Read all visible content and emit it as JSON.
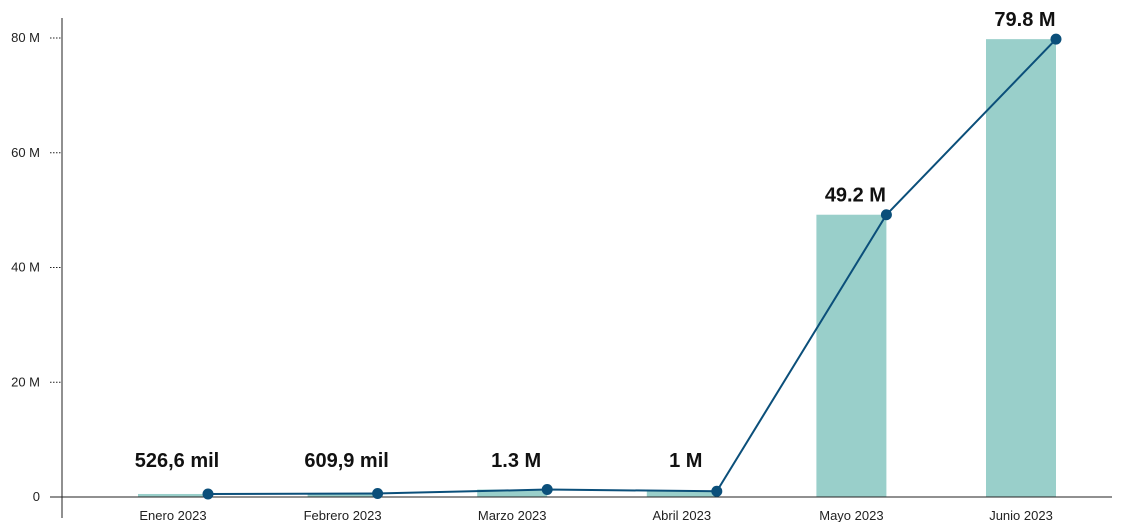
{
  "chart_data": {
    "type": "bar",
    "categories": [
      "Enero 2023",
      "Febrero 2023",
      "Marzo  2023",
      "Abril  2023",
      "Mayo  2023",
      "Junio 2023"
    ],
    "values": [
      526600,
      609900,
      1300000,
      1000000,
      49200000,
      79800000
    ],
    "line_values": [
      526600,
      609900,
      1300000,
      1000000,
      49200000,
      79800000
    ],
    "data_labels": [
      "526,6 mil",
      "609,9 mil",
      "1.3 M",
      "1 M",
      "49.2 M",
      "79.8 M"
    ],
    "y_ticks": [
      0,
      20000000,
      40000000,
      60000000,
      80000000
    ],
    "y_tick_labels": [
      "0",
      "20 M",
      "40 M",
      "60 M",
      "80 M"
    ],
    "ylim": [
      0,
      82000000
    ],
    "title": "",
    "xlabel": "",
    "ylabel": "",
    "grid": false,
    "legend": "none",
    "colors": {
      "bar": "#99cfca",
      "line": "#0b4f7a",
      "axis": "#222222",
      "text": "#111111"
    }
  }
}
